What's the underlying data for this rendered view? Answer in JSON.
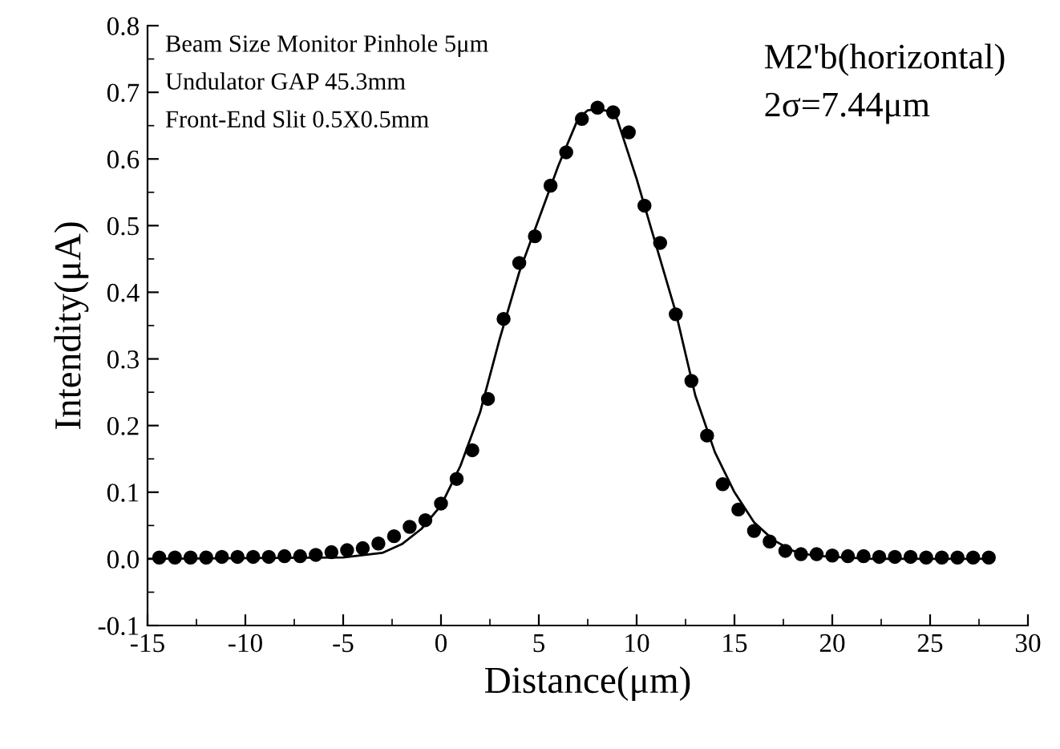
{
  "chart_data": {
    "type": "scatter",
    "xlabel": "Distance(μm)",
    "ylabel": "Intendity(μA)",
    "annotations": [
      "Beam Size Monitor Pinhole 5μm",
      "Undulator GAP 45.3mm",
      "Front-End Slit 0.5X0.5mm",
      "M2'b(horizontal)",
      "2σ=7.44μm"
    ],
    "xlim": [
      -15,
      30
    ],
    "ylim": [
      -0.1,
      0.8
    ],
    "xticks": [
      -15,
      {
        "value": -12.5,
        "label": null
      },
      -10,
      {
        "value": -7.5,
        "label": null
      },
      -5,
      {
        "value": -2.5,
        "label": null
      },
      0,
      {
        "value": 2.5,
        "label": null
      },
      5,
      {
        "value": 7.5,
        "label": null
      },
      10,
      {
        "value": 12.5,
        "label": null
      },
      15,
      {
        "value": 17.5,
        "label": null
      },
      20,
      {
        "value": 22.5,
        "label": null
      },
      25,
      {
        "value": 27.5,
        "label": null
      },
      30
    ],
    "yticks": [
      -0.1,
      {
        "value": -0.05,
        "label": null
      },
      {
        "value": 0,
        "label": "0.0"
      },
      {
        "value": 0.05,
        "label": null
      },
      0.1,
      {
        "value": 0.15,
        "label": null
      },
      0.2,
      {
        "value": 0.25,
        "label": null
      },
      0.3,
      {
        "value": 0.35,
        "label": null
      },
      0.4,
      {
        "value": 0.45,
        "label": null
      },
      0.5,
      {
        "value": 0.55,
        "label": null
      },
      0.6,
      {
        "value": 0.65,
        "label": null
      },
      0.7,
      {
        "value": 0.75,
        "label": null
      },
      0.8
    ],
    "grid": false,
    "legend": false,
    "series": [
      {
        "color": "#000000",
        "marker": "circle",
        "x": [
          -14.4,
          -13.6,
          -12.8,
          -12.0,
          -11.2,
          -10.4,
          -9.6,
          -8.8,
          -8.0,
          -7.2,
          -6.4,
          -5.6,
          -4.8,
          -4.0,
          -3.2,
          -2.4,
          -1.6,
          -0.8,
          0.0,
          0.8,
          1.6,
          2.4,
          3.2,
          4.0,
          4.8,
          5.6,
          6.4,
          7.2,
          8.0,
          8.8,
          9.6,
          10.4,
          11.2,
          12.0,
          12.8,
          13.6,
          14.4,
          15.2,
          16.0,
          16.8,
          17.6,
          18.4,
          19.2,
          20.0,
          20.8,
          21.6,
          22.4,
          23.2,
          24.0,
          24.8,
          25.6,
          26.4,
          27.2,
          28.0
        ],
        "values": [
          0.002,
          0.002,
          0.002,
          0.002,
          0.003,
          0.003,
          0.003,
          0.003,
          0.004,
          0.004,
          0.006,
          0.01,
          0.013,
          0.016,
          0.023,
          0.034,
          0.048,
          0.058,
          0.083,
          0.12,
          0.163,
          0.24,
          0.36,
          0.444,
          0.484,
          0.56,
          0.61,
          0.66,
          0.677,
          0.67,
          0.64,
          0.53,
          0.474,
          0.367,
          0.267,
          0.185,
          0.112,
          0.074,
          0.042,
          0.026,
          0.012,
          0.007,
          0.007,
          0.005,
          0.004,
          0.004,
          0.003,
          0.003,
          0.003,
          0.002,
          0.002,
          0.002,
          0.002,
          0.002
        ]
      },
      {
        "type": "line",
        "color": "#000000",
        "marker": "none",
        "line_style": "solid",
        "x": [
          -15,
          -5,
          -3,
          -2,
          -1,
          0,
          1,
          2,
          3,
          4,
          5,
          6,
          7,
          7.5,
          8,
          8.5,
          9,
          10,
          11,
          12,
          13,
          14,
          15,
          16,
          17,
          18,
          19,
          20,
          22,
          28
        ],
        "values": [
          0.0,
          0.002,
          0.009,
          0.022,
          0.045,
          0.08,
          0.14,
          0.22,
          0.33,
          0.43,
          0.51,
          0.59,
          0.66,
          0.673,
          0.675,
          0.672,
          0.66,
          0.57,
          0.47,
          0.37,
          0.245,
          0.16,
          0.1,
          0.055,
          0.028,
          0.012,
          0.005,
          0.003,
          0.0,
          0.0
        ]
      }
    ]
  }
}
